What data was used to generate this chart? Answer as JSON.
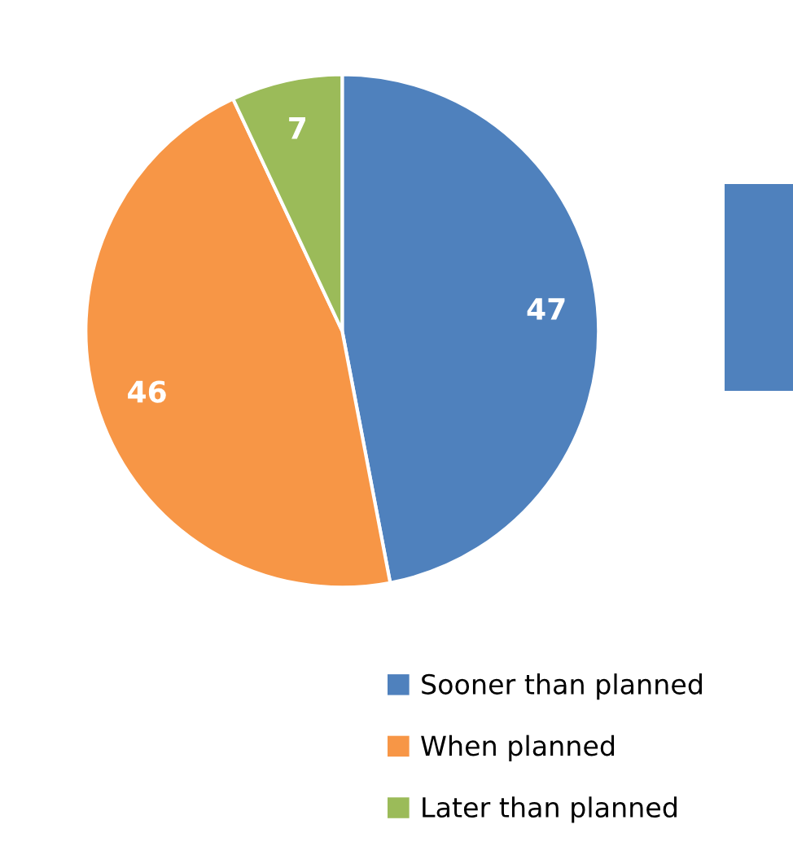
{
  "chart_data": {
    "type": "pie",
    "categories": [
      "Sooner than planned",
      "When planned",
      "Later than planned"
    ],
    "values": [
      47,
      46,
      7
    ],
    "colors": [
      "#4f81bd",
      "#f79646",
      "#9bbb59"
    ],
    "data_labels": true,
    "legend": "bottom right"
  }
}
